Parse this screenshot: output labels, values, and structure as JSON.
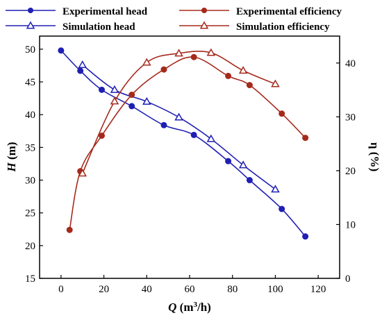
{
  "chart_data": {
    "type": "line",
    "xlabel": {
      "symbol": "Q",
      "unit_pre": " (m",
      "unit_sup": "3",
      "unit_post": "/h)"
    },
    "ylabel_left": {
      "symbol": "H",
      "unit": " (m)"
    },
    "ylabel_right": "η (%)",
    "xlim": [
      -10,
      130
    ],
    "ylim_left": [
      15,
      52
    ],
    "ylim_right": [
      0,
      45
    ],
    "x_ticks": [
      "0",
      "20",
      "40",
      "60",
      "80",
      "100",
      "120"
    ],
    "x_tick_values": [
      0,
      20,
      40,
      60,
      80,
      100,
      120
    ],
    "y_left_ticks": [
      "15",
      "20",
      "25",
      "30",
      "35",
      "40",
      "45",
      "50"
    ],
    "y_left_tick_values": [
      15,
      20,
      25,
      30,
      35,
      40,
      45,
      50
    ],
    "y_right_ticks": [
      "0",
      "10",
      "20",
      "30",
      "40"
    ],
    "y_right_tick_values": [
      0,
      10,
      20,
      30,
      40
    ],
    "grid": false,
    "legend_position": "top",
    "series": [
      {
        "name": "Experimental head",
        "axis": "left",
        "color": "#1f1fb4",
        "marker": "circle",
        "x": [
          0,
          9,
          19,
          33,
          48,
          62,
          78,
          88,
          103,
          114
        ],
        "y": [
          49.8,
          46.7,
          43.8,
          41.3,
          38.4,
          36.9,
          32.9,
          30.0,
          25.6,
          21.4
        ]
      },
      {
        "name": "Simulation head",
        "axis": "left",
        "color": "#1f1fb4",
        "marker": "triangle",
        "x": [
          10,
          25,
          40,
          55,
          70,
          85,
          100
        ],
        "y": [
          47.6,
          43.8,
          42.0,
          39.6,
          36.3,
          32.3,
          28.6
        ]
      },
      {
        "name": "Experimental efficiency",
        "axis": "right",
        "color": "#a52a1c",
        "marker": "circle",
        "x": [
          4,
          9,
          19,
          33,
          48,
          62,
          78,
          88,
          103,
          114
        ],
        "y": [
          9.0,
          19.9,
          26.5,
          34.1,
          38.8,
          41.1,
          37.6,
          35.9,
          30.6,
          26.1
        ]
      },
      {
        "name": "Simulation efficiency",
        "axis": "right",
        "color": "#a52a1c",
        "marker": "triangle",
        "x": [
          10,
          25,
          40,
          55,
          70,
          85,
          100
        ],
        "y": [
          19.5,
          32.9,
          40.1,
          41.8,
          41.9,
          38.6,
          36.1
        ]
      }
    ]
  }
}
